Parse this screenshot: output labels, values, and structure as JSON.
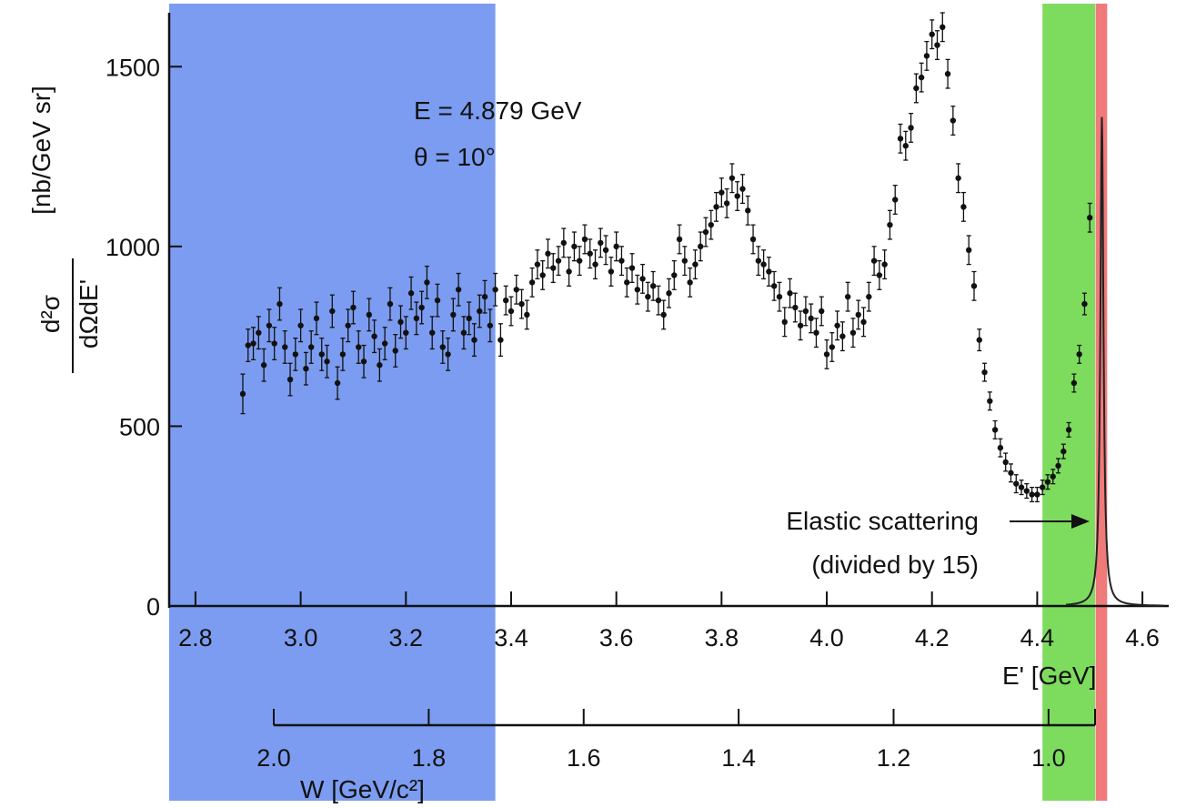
{
  "chart_data": {
    "type": "scatter",
    "annotations": {
      "energy": "E = 4.879 GeV",
      "angle": "θ = 10°",
      "elastic_line1": "Elastic scattering",
      "elastic_line2": "(divided by 15)"
    },
    "y_axis": {
      "label_fraction_num": "d²σ",
      "label_fraction_den": "dΩdE'",
      "label_units": "[nb/GeV sr]",
      "range": [
        0,
        1650
      ],
      "ticks": [
        0,
        500,
        1000,
        1500
      ]
    },
    "x_axis": {
      "label": "E' [GeV]",
      "range": [
        2.75,
        4.65
      ],
      "ticks": [
        2.8,
        3.0,
        3.2,
        3.4,
        3.6,
        3.8,
        4.0,
        4.2,
        4.4,
        4.6
      ],
      "tick_labels": [
        "2.8",
        "3.0",
        "3.2",
        "3.4",
        "3.6",
        "3.8",
        "4.0",
        "4.2",
        "4.4",
        "4.6"
      ]
    },
    "w_axis": {
      "label": "W [GeV/c²]",
      "range": [
        2.0,
        0.94
      ],
      "ticks": [
        2.0,
        1.8,
        1.6,
        1.4,
        1.2,
        1.0
      ],
      "tick_labels": [
        "2.0",
        "1.8",
        "1.6",
        "1.4",
        "1.2",
        "1.0"
      ]
    },
    "shaded_regions": [
      {
        "name": "blue-region",
        "x_from": 2.75,
        "x_to": 3.37,
        "color": "#7b9cf0"
      },
      {
        "name": "green-region",
        "x_from": 4.41,
        "x_to": 4.51,
        "color": "#7ddb5e"
      },
      {
        "name": "red-region",
        "x_from": 4.511,
        "x_to": 4.533,
        "color": "#f07a7a"
      }
    ],
    "elastic_peak": {
      "x_center": 4.523,
      "peak_y": 1360,
      "color": "#222222"
    },
    "series": [
      {
        "points": [
          [
            2.89,
            590,
            55
          ],
          [
            2.9,
            725,
            45
          ],
          [
            2.91,
            730,
            45
          ],
          [
            2.92,
            760,
            45
          ],
          [
            2.93,
            670,
            45
          ],
          [
            2.94,
            780,
            45
          ],
          [
            2.95,
            730,
            45
          ],
          [
            2.96,
            840,
            45
          ],
          [
            2.97,
            720,
            45
          ],
          [
            2.98,
            630,
            45
          ],
          [
            2.99,
            700,
            45
          ],
          [
            3.0,
            780,
            45
          ],
          [
            3.01,
            660,
            45
          ],
          [
            3.02,
            720,
            45
          ],
          [
            3.03,
            800,
            45
          ],
          [
            3.04,
            700,
            45
          ],
          [
            3.05,
            680,
            45
          ],
          [
            3.06,
            820,
            45
          ],
          [
            3.07,
            620,
            45
          ],
          [
            3.08,
            700,
            45
          ],
          [
            3.09,
            780,
            45
          ],
          [
            3.1,
            830,
            45
          ],
          [
            3.11,
            720,
            45
          ],
          [
            3.12,
            680,
            45
          ],
          [
            3.13,
            810,
            45
          ],
          [
            3.14,
            750,
            45
          ],
          [
            3.15,
            670,
            45
          ],
          [
            3.16,
            730,
            45
          ],
          [
            3.17,
            840,
            45
          ],
          [
            3.18,
            710,
            45
          ],
          [
            3.19,
            790,
            45
          ],
          [
            3.2,
            760,
            45
          ],
          [
            3.21,
            870,
            45
          ],
          [
            3.22,
            800,
            45
          ],
          [
            3.23,
            830,
            45
          ],
          [
            3.24,
            900,
            45
          ],
          [
            3.25,
            760,
            45
          ],
          [
            3.26,
            850,
            45
          ],
          [
            3.27,
            720,
            45
          ],
          [
            3.28,
            700,
            45
          ],
          [
            3.29,
            810,
            45
          ],
          [
            3.3,
            880,
            45
          ],
          [
            3.31,
            760,
            45
          ],
          [
            3.32,
            800,
            45
          ],
          [
            3.33,
            740,
            45
          ],
          [
            3.34,
            820,
            45
          ],
          [
            3.35,
            860,
            45
          ],
          [
            3.36,
            780,
            45
          ],
          [
            3.37,
            880,
            45
          ],
          [
            3.38,
            740,
            45
          ],
          [
            3.39,
            850,
            40
          ],
          [
            3.4,
            820,
            40
          ],
          [
            3.41,
            880,
            40
          ],
          [
            3.42,
            840,
            40
          ],
          [
            3.43,
            810,
            40
          ],
          [
            3.44,
            900,
            40
          ],
          [
            3.45,
            950,
            40
          ],
          [
            3.46,
            920,
            40
          ],
          [
            3.47,
            980,
            40
          ],
          [
            3.48,
            940,
            40
          ],
          [
            3.49,
            960,
            40
          ],
          [
            3.5,
            1010,
            40
          ],
          [
            3.51,
            930,
            40
          ],
          [
            3.52,
            1000,
            40
          ],
          [
            3.53,
            960,
            40
          ],
          [
            3.54,
            1020,
            40
          ],
          [
            3.55,
            980,
            40
          ],
          [
            3.56,
            950,
            40
          ],
          [
            3.57,
            1010,
            40
          ],
          [
            3.58,
            990,
            40
          ],
          [
            3.59,
            930,
            40
          ],
          [
            3.6,
            1000,
            40
          ],
          [
            3.61,
            960,
            40
          ],
          [
            3.62,
            900,
            40
          ],
          [
            3.63,
            940,
            40
          ],
          [
            3.64,
            880,
            40
          ],
          [
            3.65,
            910,
            40
          ],
          [
            3.66,
            860,
            40
          ],
          [
            3.67,
            890,
            40
          ],
          [
            3.68,
            850,
            40
          ],
          [
            3.69,
            810,
            40
          ],
          [
            3.7,
            870,
            40
          ],
          [
            3.71,
            920,
            40
          ],
          [
            3.72,
            1020,
            40
          ],
          [
            3.73,
            960,
            40
          ],
          [
            3.74,
            900,
            40
          ],
          [
            3.75,
            950,
            40
          ],
          [
            3.76,
            1000,
            40
          ],
          [
            3.77,
            1040,
            40
          ],
          [
            3.78,
            1060,
            40
          ],
          [
            3.79,
            1110,
            40
          ],
          [
            3.8,
            1150,
            40
          ],
          [
            3.81,
            1120,
            40
          ],
          [
            3.82,
            1190,
            40
          ],
          [
            3.83,
            1140,
            40
          ],
          [
            3.84,
            1160,
            40
          ],
          [
            3.85,
            1100,
            40
          ],
          [
            3.86,
            1020,
            40
          ],
          [
            3.87,
            960,
            40
          ],
          [
            3.88,
            950,
            40
          ],
          [
            3.89,
            930,
            40
          ],
          [
            3.9,
            890,
            40
          ],
          [
            3.91,
            860,
            40
          ],
          [
            3.92,
            790,
            40
          ],
          [
            3.93,
            870,
            40
          ],
          [
            3.94,
            830,
            40
          ],
          [
            3.95,
            780,
            40
          ],
          [
            3.96,
            820,
            40
          ],
          [
            3.97,
            800,
            40
          ],
          [
            3.98,
            760,
            40
          ],
          [
            3.99,
            820,
            40
          ],
          [
            4.0,
            700,
            40
          ],
          [
            4.01,
            720,
            40
          ],
          [
            4.02,
            780,
            40
          ],
          [
            4.03,
            750,
            40
          ],
          [
            4.04,
            860,
            40
          ],
          [
            4.05,
            760,
            40
          ],
          [
            4.06,
            810,
            40
          ],
          [
            4.07,
            790,
            40
          ],
          [
            4.08,
            860,
            40
          ],
          [
            4.09,
            960,
            40
          ],
          [
            4.1,
            920,
            40
          ],
          [
            4.11,
            950,
            40
          ],
          [
            4.12,
            1060,
            40
          ],
          [
            4.13,
            1130,
            40
          ],
          [
            4.14,
            1300,
            40
          ],
          [
            4.15,
            1280,
            40
          ],
          [
            4.16,
            1330,
            40
          ],
          [
            4.17,
            1440,
            40
          ],
          [
            4.18,
            1470,
            40
          ],
          [
            4.19,
            1530,
            40
          ],
          [
            4.2,
            1590,
            40
          ],
          [
            4.21,
            1560,
            40
          ],
          [
            4.22,
            1610,
            40
          ],
          [
            4.23,
            1480,
            40
          ],
          [
            4.24,
            1350,
            40
          ],
          [
            4.25,
            1190,
            40
          ],
          [
            4.26,
            1110,
            40
          ],
          [
            4.27,
            990,
            40
          ],
          [
            4.28,
            890,
            40
          ],
          [
            4.29,
            740,
            30
          ],
          [
            4.3,
            650,
            25
          ],
          [
            4.31,
            570,
            25
          ],
          [
            4.32,
            490,
            25
          ],
          [
            4.33,
            440,
            25
          ],
          [
            4.34,
            400,
            25
          ],
          [
            4.35,
            370,
            25
          ],
          [
            4.36,
            340,
            25
          ],
          [
            4.37,
            330,
            20
          ],
          [
            4.38,
            320,
            20
          ],
          [
            4.39,
            310,
            20
          ],
          [
            4.4,
            310,
            20
          ],
          [
            4.41,
            330,
            20
          ],
          [
            4.42,
            345,
            20
          ],
          [
            4.43,
            360,
            20
          ],
          [
            4.44,
            390,
            20
          ],
          [
            4.45,
            430,
            20
          ],
          [
            4.46,
            490,
            20
          ],
          [
            4.47,
            620,
            25
          ],
          [
            4.48,
            700,
            25
          ],
          [
            4.49,
            840,
            30
          ],
          [
            4.5,
            1080,
            40
          ]
        ]
      }
    ]
  }
}
